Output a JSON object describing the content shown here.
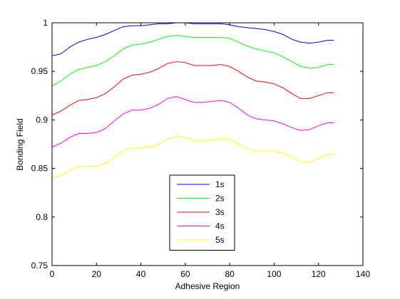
{
  "chart_data": {
    "type": "line",
    "xlabel": "Adhesive Region",
    "ylabel": "Bonding Field",
    "xlim": [
      0,
      140
    ],
    "ylim": [
      0.75,
      1.0
    ],
    "xticks": [
      "0",
      "20",
      "40",
      "60",
      "80",
      "100",
      "120",
      "140"
    ],
    "xtick_values": [
      0,
      20,
      40,
      60,
      80,
      100,
      120,
      140
    ],
    "yticks": [
      "0.75",
      "0.8",
      "0.85",
      "0.9",
      "0.95",
      "1"
    ],
    "ytick_values": [
      0.75,
      0.8,
      0.85,
      0.9,
      0.95,
      1.0
    ],
    "grid": false,
    "legend_position": "bottom-center",
    "x": [
      0,
      4,
      8,
      12,
      16,
      20,
      24,
      28,
      32,
      36,
      40,
      44,
      48,
      52,
      56,
      60,
      64,
      68,
      72,
      76,
      80,
      84,
      88,
      92,
      96,
      100,
      104,
      108,
      112,
      116,
      120,
      124,
      127
    ],
    "series": [
      {
        "name": "1s",
        "color": "#0000ff",
        "values": [
          0.966,
          0.968,
          0.975,
          0.98,
          0.983,
          0.985,
          0.988,
          0.992,
          0.996,
          0.997,
          0.997,
          0.998,
          0.999,
          0.999,
          1.0,
          1.0,
          0.999,
          0.999,
          0.999,
          0.999,
          0.998,
          0.996,
          0.995,
          0.994,
          0.993,
          0.991,
          0.988,
          0.983,
          0.98,
          0.979,
          0.98,
          0.982,
          0.982
        ]
      },
      {
        "name": "2s",
        "color": "#00ff00",
        "values": [
          0.935,
          0.94,
          0.947,
          0.952,
          0.954,
          0.956,
          0.96,
          0.966,
          0.973,
          0.977,
          0.978,
          0.98,
          0.983,
          0.986,
          0.987,
          0.986,
          0.985,
          0.985,
          0.985,
          0.985,
          0.984,
          0.98,
          0.976,
          0.973,
          0.971,
          0.969,
          0.965,
          0.96,
          0.955,
          0.953,
          0.954,
          0.957,
          0.957
        ]
      },
      {
        "name": "3s",
        "color": "#ff0000",
        "values": [
          0.905,
          0.909,
          0.915,
          0.92,
          0.921,
          0.923,
          0.927,
          0.934,
          0.942,
          0.946,
          0.947,
          0.949,
          0.953,
          0.958,
          0.96,
          0.959,
          0.956,
          0.956,
          0.956,
          0.957,
          0.955,
          0.95,
          0.944,
          0.94,
          0.939,
          0.937,
          0.933,
          0.927,
          0.922,
          0.922,
          0.925,
          0.928,
          0.928
        ]
      },
      {
        "name": "4s",
        "color": "#ff00ff",
        "values": [
          0.872,
          0.876,
          0.882,
          0.886,
          0.886,
          0.887,
          0.891,
          0.899,
          0.906,
          0.91,
          0.91,
          0.912,
          0.916,
          0.922,
          0.924,
          0.921,
          0.918,
          0.918,
          0.919,
          0.92,
          0.918,
          0.912,
          0.905,
          0.901,
          0.9,
          0.899,
          0.896,
          0.892,
          0.889,
          0.89,
          0.894,
          0.897,
          0.897
        ]
      },
      {
        "name": "5s",
        "color": "#ffff00",
        "values": [
          0.84,
          0.843,
          0.848,
          0.852,
          0.852,
          0.852,
          0.855,
          0.861,
          0.868,
          0.871,
          0.871,
          0.872,
          0.875,
          0.88,
          0.883,
          0.882,
          0.879,
          0.878,
          0.879,
          0.881,
          0.88,
          0.875,
          0.87,
          0.868,
          0.868,
          0.868,
          0.866,
          0.862,
          0.857,
          0.856,
          0.86,
          0.864,
          0.865
        ]
      }
    ]
  }
}
